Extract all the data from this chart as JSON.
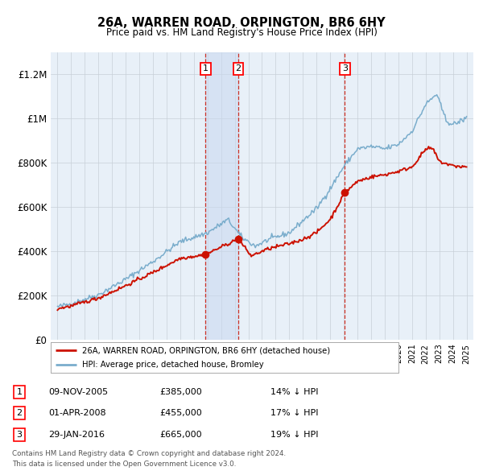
{
  "title": "26A, WARREN ROAD, ORPINGTON, BR6 6HY",
  "subtitle": "Price paid vs. HM Land Registry's House Price Index (HPI)",
  "ylim": [
    0,
    1300000
  ],
  "yticks": [
    0,
    200000,
    400000,
    600000,
    800000,
    1000000,
    1200000
  ],
  "ytick_labels": [
    "£0",
    "£200K",
    "£400K",
    "£600K",
    "£800K",
    "£1M",
    "£1.2M"
  ],
  "hpi_color": "#7aadcc",
  "price_color": "#cc1100",
  "bg_color": "#ffffff",
  "plot_bg": "#e8f0f8",
  "grid_color": "#c8d0d8",
  "purchase_date_nums": [
    2005.86,
    2008.25,
    2016.08
  ],
  "purchase_prices_val": [
    385000,
    455000,
    665000
  ],
  "purchase_labels": [
    "1",
    "2",
    "3"
  ],
  "purchase_dates": [
    "09-NOV-2005",
    "01-APR-2008",
    "29-JAN-2016"
  ],
  "purchase_prices_str": [
    "£385,000",
    "£455,000",
    "£665,000"
  ],
  "purchase_hpi_str": [
    "14% ↓ HPI",
    "17% ↓ HPI",
    "19% ↓ HPI"
  ],
  "legend_label_price": "26A, WARREN ROAD, ORPINGTON, BR6 6HY (detached house)",
  "legend_label_hpi": "HPI: Average price, detached house, Bromley",
  "footnote_line1": "Contains HM Land Registry data © Crown copyright and database right 2024.",
  "footnote_line2": "This data is licensed under the Open Government Licence v3.0."
}
